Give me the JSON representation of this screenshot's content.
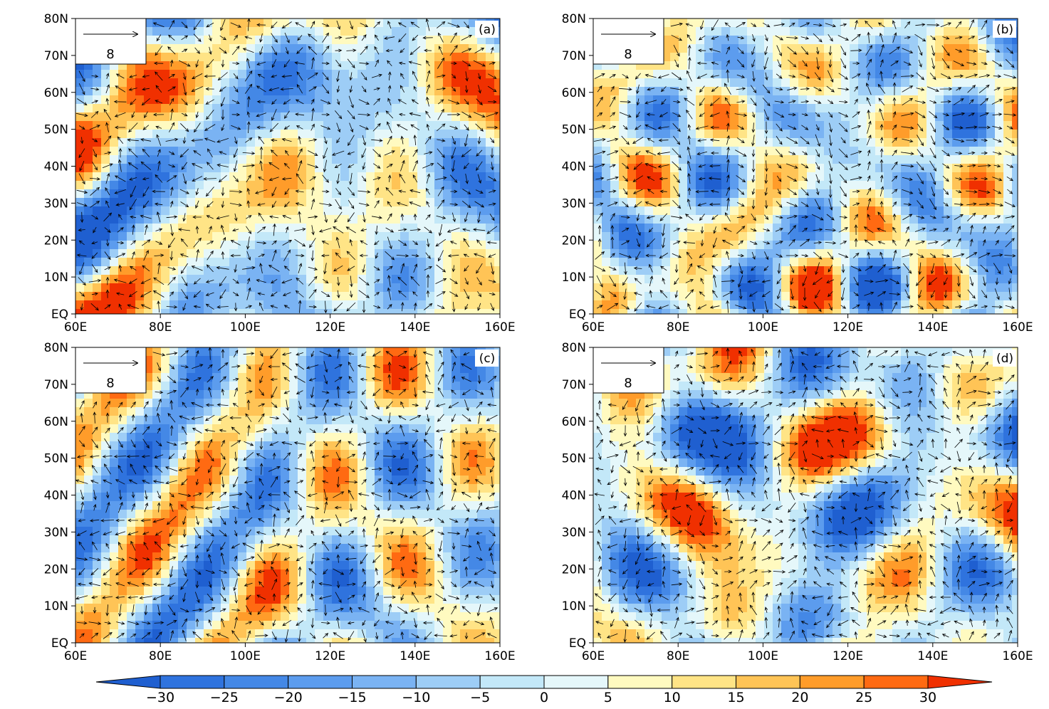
{
  "figure": {
    "panels": [
      {
        "label": "(a)",
        "reference_vector": "8"
      },
      {
        "label": "(b)",
        "reference_vector": "8"
      },
      {
        "label": "(c)",
        "reference_vector": "8"
      },
      {
        "label": "(d)",
        "reference_vector": "8"
      }
    ],
    "lat_ticks": [
      "EQ",
      "10N",
      "20N",
      "30N",
      "40N",
      "50N",
      "60N",
      "70N",
      "80N"
    ],
    "lon_ticks": [
      "60E",
      "80E",
      "100E",
      "120E",
      "140E",
      "160E"
    ],
    "colorbar": {
      "ticks": [
        "−30",
        "−25",
        "−20",
        "−15",
        "−10",
        "−5",
        "0",
        "5",
        "10",
        "15",
        "20",
        "25",
        "30"
      ],
      "colors": [
        "#1f5fd0",
        "#2f73de",
        "#4488e6",
        "#5c9cee",
        "#7ab3f3",
        "#9dcdf6",
        "#c3e8f8",
        "#e5f7fa",
        "#fffac0",
        "#ffe486",
        "#ffc456",
        "#ff9c2a",
        "#ff6a12",
        "#f03000"
      ]
    }
  }
}
